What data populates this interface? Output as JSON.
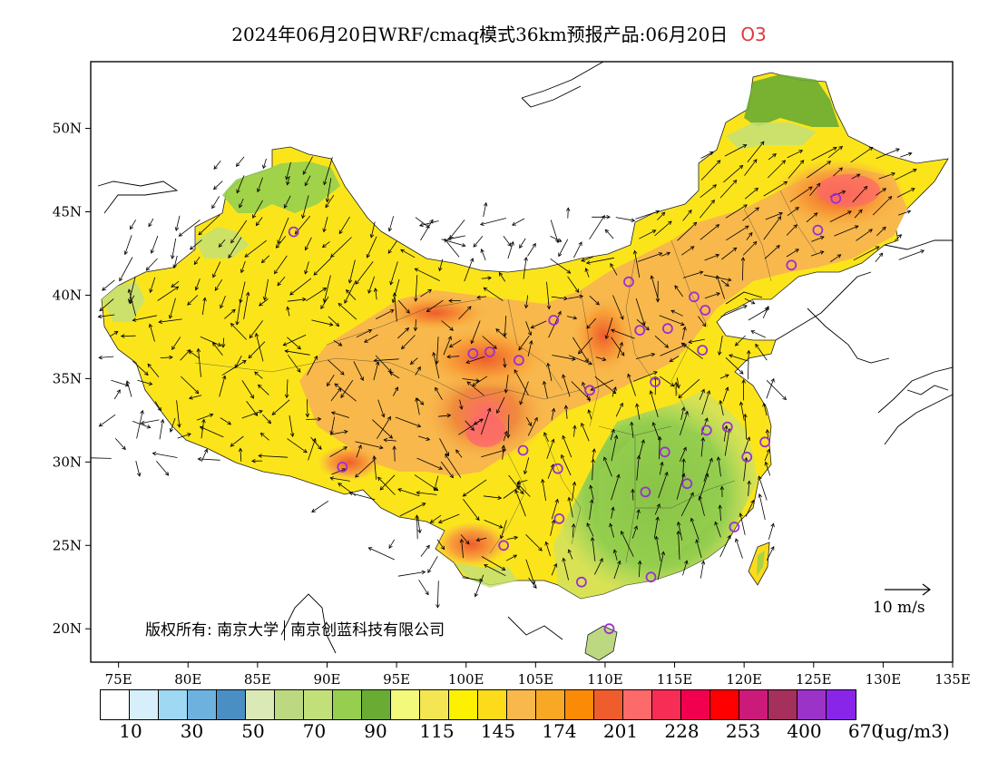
{
  "title": {
    "main": "2024年06月20日WRF/cmaq模式36km预报产品:06月20日",
    "species": "O3"
  },
  "map": {
    "lon_labels": [
      "75E",
      "80E",
      "85E",
      "90E",
      "95E",
      "100E",
      "105E",
      "110E",
      "115E",
      "120E",
      "125E",
      "130E",
      "135E"
    ],
    "lat_labels": [
      "20N",
      "25N",
      "30N",
      "35N",
      "40N",
      "45N",
      "50N"
    ],
    "lon_range": [
      73,
      135
    ],
    "lat_range": [
      18,
      54
    ],
    "ocean_color": "#ffffff",
    "land_outside_color": "#ffffff"
  },
  "copyright": {
    "prefix": "版权所有: 南京大学",
    "suffix": "南京创蓝科技有限公司"
  },
  "reference_vector": {
    "label": "10 m/s"
  },
  "legend": {
    "colors": [
      "#ffffff",
      "#d6effb",
      "#9ed8f2",
      "#6db2df",
      "#4a8fc4",
      "#dbe9b6",
      "#bcd982",
      "#c2e07a",
      "#96cf50",
      "#6aab33",
      "#f3f97a",
      "#f4e652",
      "#fdf000",
      "#fbdb1a",
      "#f8b84c",
      "#f9a825",
      "#fb8b06",
      "#ef5d2c",
      "#fd6a6a",
      "#f72d55",
      "#f0004f",
      "#ff0000",
      "#cc1a7a",
      "#a5305c",
      "#9c33c8",
      "#8925e8"
    ],
    "labels": [
      "10",
      "30",
      "50",
      "70",
      "90",
      "115",
      "145",
      "174",
      "201",
      "228",
      "253",
      "400",
      "670"
    ],
    "unit": "(ug/m3)"
  }
}
